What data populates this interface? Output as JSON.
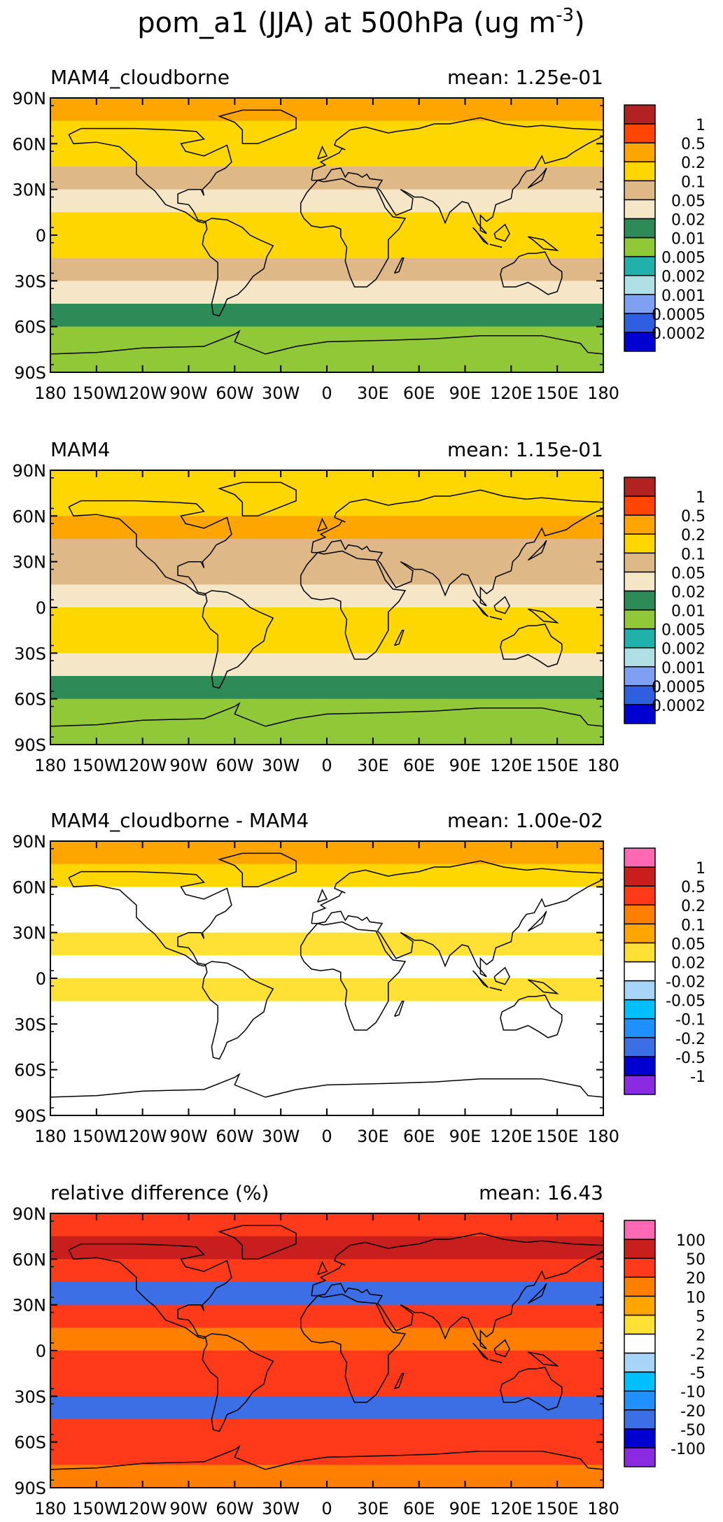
{
  "title": "pom_a1 (JJA) at 500hPa (ug m",
  "title_sup": "-3",
  "title_close": ")",
  "panels": [
    {
      "label": "MAM4_cloudborne",
      "mean": "mean: 1.25e-01",
      "colorbar": {
        "colors": [
          "#0000d0",
          "#2f5ee0",
          "#7fa0f0",
          "#b0e0e6",
          "#20b2aa",
          "#90c838",
          "#2e8b57",
          "#f5e6c8",
          "#deb887",
          "#ffd700",
          "#ffa500",
          "#ff4500",
          "#b22222"
        ],
        "labels": [
          "0.0002",
          "0.0005",
          "0.001",
          "0.002",
          "0.005",
          "0.01",
          "0.02",
          "0.05",
          "0.1",
          "0.2",
          "0.5",
          "1"
        ]
      },
      "bands": [
        "#ffa500",
        "#ffd700",
        "#ffd700",
        "#deb887",
        "#f5e6c8",
        "#ffd700",
        "#ffd700",
        "#deb887",
        "#f5e6c8",
        "#2e8b57",
        "#90c838",
        "#90c838"
      ]
    },
    {
      "label": "MAM4",
      "mean": "mean: 1.15e-01",
      "colorbar": {
        "colors": [
          "#0000d0",
          "#2f5ee0",
          "#7fa0f0",
          "#b0e0e6",
          "#20b2aa",
          "#90c838",
          "#2e8b57",
          "#f5e6c8",
          "#deb887",
          "#ffd700",
          "#ffa500",
          "#ff4500",
          "#b22222"
        ],
        "labels": [
          "0.0002",
          "0.0005",
          "0.001",
          "0.002",
          "0.005",
          "0.01",
          "0.02",
          "0.05",
          "0.1",
          "0.2",
          "0.5",
          "1"
        ]
      },
      "bands": [
        "#ffd700",
        "#ffd700",
        "#ffa500",
        "#deb887",
        "#deb887",
        "#f5e6c8",
        "#ffd700",
        "#ffd700",
        "#f5e6c8",
        "#2e8b57",
        "#90c838",
        "#90c838"
      ]
    },
    {
      "label": "MAM4_cloudborne - MAM4",
      "mean": "mean: 1.00e-02",
      "colorbar": {
        "colors": [
          "#8a2be2",
          "#0000d0",
          "#3c6ee6",
          "#1e90ff",
          "#00bfff",
          "#a8d4f8",
          "#ffffff",
          "#ffe135",
          "#ffa500",
          "#ff7f00",
          "#ff3a1a",
          "#c81e1e",
          "#ff69b4"
        ],
        "labels": [
          "-1",
          "-0.5",
          "-0.2",
          "-0.1",
          "-0.05",
          "-0.02",
          "0.02",
          "0.05",
          "0.1",
          "0.2",
          "0.5",
          "1"
        ]
      },
      "bands": [
        "#ffa500",
        "#ffd700",
        "#ffffff",
        "#ffffff",
        "#ffe135",
        "#ffffff",
        "#ffe135",
        "#ffffff",
        "#ffffff",
        "#ffffff",
        "#ffffff",
        "#ffffff"
      ]
    },
    {
      "label": "relative difference (%)",
      "mean": "mean: 16.43",
      "colorbar": {
        "colors": [
          "#8a2be2",
          "#0000d0",
          "#3c6ee6",
          "#1e90ff",
          "#00bfff",
          "#a8d4f8",
          "#ffffff",
          "#ffe135",
          "#ffa500",
          "#ff7f00",
          "#ff3a1a",
          "#c81e1e",
          "#ff69b4"
        ],
        "labels": [
          "-100",
          "-50",
          "-20",
          "-10",
          "-5",
          "-2",
          "2",
          "5",
          "10",
          "20",
          "50",
          "100"
        ]
      },
      "bands": [
        "#ff3a1a",
        "#c81e1e",
        "#ff3a1a",
        "#3c6ee6",
        "#ff3a1a",
        "#ff7f00",
        "#ff3a1a",
        "#ff3a1a",
        "#3c6ee6",
        "#ff3a1a",
        "#ff3a1a",
        "#ff7f00"
      ]
    }
  ],
  "lat_ticks": [
    "90N",
    "60N",
    "30N",
    "0",
    "30S",
    "60S",
    "90S"
  ],
  "lon_ticks": [
    "180",
    "150W",
    "120W",
    "90W",
    "60W",
    "30W",
    "0",
    "30E",
    "60E",
    "90E",
    "120E",
    "150E",
    "180"
  ]
}
